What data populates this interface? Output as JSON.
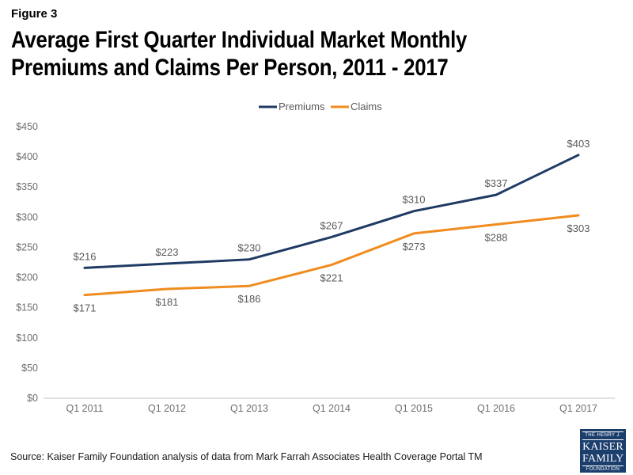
{
  "header": {
    "figure_label": "Figure 3",
    "title_line1": "Average First Quarter Individual Market Monthly",
    "title_line2": "Premiums and Claims Per Person, 2011 - 2017"
  },
  "chart_data": {
    "type": "line",
    "categories": [
      "Q1 2011",
      "Q1 2012",
      "Q1 2013",
      "Q1 2014",
      "Q1 2015",
      "Q1 2016",
      "Q1 2017"
    ],
    "series": [
      {
        "name": "Premiums",
        "color": "#1f3b63",
        "values": [
          216,
          223,
          230,
          267,
          310,
          337,
          403
        ],
        "label_position": "above"
      },
      {
        "name": "Claims",
        "color": "#f08c1e",
        "values": [
          171,
          181,
          186,
          221,
          273,
          288,
          303
        ],
        "label_position": "below"
      }
    ],
    "title": "",
    "xlabel": "",
    "ylabel": "",
    "ylim": [
      0,
      450
    ],
    "ytick_step": 50,
    "value_prefix": "$",
    "grid": false,
    "data_labels": true,
    "legend_position": "top-center",
    "axis_line_color": "#d9d9d9",
    "tick_label_color": "#6e6e6e",
    "data_label_color": "#595959"
  },
  "footer": {
    "source": "Source: Kaiser Family Foundation analysis of data from Mark Farrah Associates Health Coverage Portal TM",
    "logo": {
      "line1": "THE HENRY J.",
      "line2": "KAISER",
      "line3": "FAMILY",
      "line4": "FOUNDATION"
    }
  }
}
